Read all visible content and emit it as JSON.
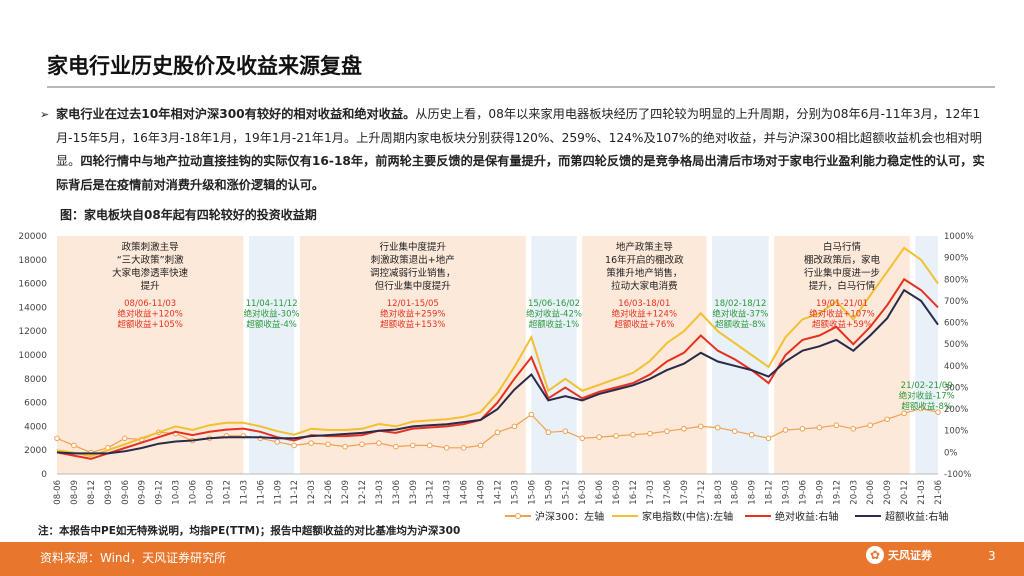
{
  "page": {
    "title": "家电行业历史股价及收益来源复盘",
    "bullet_arrow": "➢",
    "bullet_bold1": "家电行业在过去10年相对沪深300有较好的相对收益和绝对收益。",
    "bullet_text1": "从历史上看，08年以来家用电器板块经历了四轮较为明显的上升周期，分别为08年6月-11年3月，12年1月-15年5月，16年3月-18年1月，19年1月-21年1月。上升周期内家电板块分别获得120%、259%、124%及107%的绝对收益，并与沪深300相比超额收益机会也相对明显。",
    "bullet_bold2": "四轮行情中与地产拉动直接挂钩的实际仅有16-18年，前两轮主要反馈的是保有量提升，而第四轮反馈的是竞争格局出清后市场对于家电行业盈利能力稳定性的认可，实际背后是在疫情前对消费升级和涨价逻辑的认可。",
    "figure_title": "图：家电板块自08年起有四轮较好的投资收益期",
    "note": "注：本报告中PE如无特殊说明，均指PE(TTM)；报告中超额收益的对比基准均为沪深300",
    "source": "资料来源：Wind，天风证券研究所",
    "logo_text": "天风证券",
    "page_number": "3"
  },
  "chart_data": {
    "type": "line",
    "x": [
      "08-06",
      "08-09",
      "08-12",
      "09-03",
      "09-06",
      "09-09",
      "09-12",
      "10-03",
      "10-06",
      "10-09",
      "10-12",
      "11-03",
      "11-06",
      "11-09",
      "11-12",
      "12-03",
      "12-06",
      "12-09",
      "12-12",
      "13-03",
      "13-06",
      "13-09",
      "13-12",
      "14-03",
      "14-06",
      "14-09",
      "14-12",
      "15-03",
      "15-06",
      "15-09",
      "15-12",
      "16-03",
      "16-06",
      "16-09",
      "16-12",
      "17-03",
      "17-06",
      "17-09",
      "17-12",
      "18-03",
      "18-06",
      "18-09",
      "18-12",
      "19-03",
      "19-06",
      "19-09",
      "19-12",
      "20-03",
      "20-06",
      "20-09",
      "20-12",
      "21-03",
      "21-06"
    ],
    "left_axis": {
      "min": 0,
      "max": 20000,
      "ticks": [
        "0",
        "2000",
        "4000",
        "6000",
        "8000",
        "10000",
        "12000",
        "14000",
        "16000",
        "18000",
        "20000"
      ]
    },
    "right_axis": {
      "min": -100,
      "max": 1000,
      "ticks": [
        "-100%",
        "0%",
        "100%",
        "200%",
        "300%",
        "400%",
        "500%",
        "600%",
        "700%",
        "800%",
        "900%",
        "1000%"
      ]
    },
    "series": [
      {
        "name": "沪深300：左轴",
        "axis": "left",
        "color": "#f0a050",
        "marker": "circle",
        "values": [
          3000,
          2400,
          1800,
          2200,
          3000,
          2900,
          3500,
          3400,
          2800,
          3000,
          3200,
          3200,
          3000,
          2700,
          2400,
          2600,
          2500,
          2300,
          2500,
          2600,
          2300,
          2400,
          2400,
          2200,
          2200,
          2400,
          3500,
          4000,
          5000,
          3500,
          3600,
          3000,
          3100,
          3200,
          3300,
          3400,
          3600,
          3800,
          4000,
          3900,
          3600,
          3300,
          3000,
          3700,
          3800,
          3900,
          4100,
          3800,
          4100,
          4600,
          5100,
          5500,
          5200
        ]
      },
      {
        "name": "家电指数(中信):左轴",
        "axis": "left",
        "color": "#f2c030",
        "values": [
          2000,
          1800,
          1500,
          2000,
          2500,
          3000,
          3500,
          4000,
          3700,
          4100,
          4300,
          4300,
          4000,
          3600,
          3300,
          3800,
          3700,
          3700,
          3800,
          4200,
          4000,
          4400,
          4500,
          4600,
          4800,
          5200,
          6800,
          9000,
          11500,
          7000,
          8000,
          7000,
          7500,
          8000,
          8500,
          9500,
          11000,
          12000,
          13500,
          12000,
          11000,
          10000,
          9000,
          11500,
          13000,
          13500,
          14500,
          13000,
          15000,
          17000,
          19000,
          18000,
          16000
        ]
      },
      {
        "name": "绝对收益:右轴",
        "axis": "right",
        "color": "#e83020",
        "values": [
          0,
          -15,
          -30,
          -5,
          20,
          45,
          70,
          95,
          80,
          95,
          105,
          110,
          95,
          70,
          55,
          80,
          75,
          75,
          80,
          100,
          90,
          110,
          115,
          120,
          130,
          150,
          230,
          340,
          440,
          250,
          300,
          250,
          280,
          300,
          320,
          360,
          420,
          460,
          540,
          470,
          430,
          380,
          320,
          450,
          520,
          540,
          580,
          500,
          580,
          680,
          800,
          750,
          670
        ]
      },
      {
        "name": "超额收益:右轴",
        "axis": "right",
        "color": "#2a2a4a",
        "values": [
          0,
          -5,
          -5,
          -5,
          5,
          20,
          40,
          50,
          55,
          65,
          70,
          70,
          70,
          65,
          65,
          75,
          80,
          85,
          90,
          100,
          105,
          120,
          125,
          130,
          140,
          150,
          200,
          290,
          360,
          240,
          260,
          240,
          270,
          290,
          310,
          340,
          380,
          410,
          460,
          420,
          400,
          380,
          350,
          420,
          470,
          490,
          520,
          470,
          540,
          620,
          750,
          700,
          590
        ]
      }
    ],
    "periods": [
      {
        "from": "08-06",
        "to": "11-03",
        "color": "#fce9da",
        "text": [
          "政策刺激主导",
          "“三大政策”刺激",
          "大家电渗透率快速",
          "提升"
        ],
        "label": "08/06-11/03",
        "abs": "绝对收益+120%",
        "exc": "超额收益+105%",
        "lc": "#e83020"
      },
      {
        "from": "11-04",
        "to": "11-12",
        "color": "#e8f0f8",
        "label": "11/04-11/12",
        "abs": "绝对收益-30%",
        "exc": "超额收益-4%",
        "lc": "#2a9a3a"
      },
      {
        "from": "12-01",
        "to": "15-05",
        "color": "#fce9da",
        "text": [
          "行业集中度提升",
          "刺激政策退出+地产",
          "调控减弱行业销售，",
          "但行业集中度提升"
        ],
        "label": "12/01-15/05",
        "abs": "绝对收益+259%",
        "exc": "超额收益+153%",
        "lc": "#e83020"
      },
      {
        "from": "15-06",
        "to": "16-02",
        "color": "#e8f0f8",
        "label": "15/06-16/02",
        "abs": "绝对收益-42%",
        "exc": "超额收益-1%",
        "lc": "#2a9a3a"
      },
      {
        "from": "16-03",
        "to": "18-01",
        "color": "#fce9da",
        "text": [
          "地产政策主导",
          "16年开启的棚改政",
          "策推升地产销售，",
          "拉动大家电消费"
        ],
        "label": "16/03-18/01",
        "abs": "绝对收益+124%",
        "exc": "超额收益+76%",
        "lc": "#e83020"
      },
      {
        "from": "18-02",
        "to": "18-12",
        "color": "#e8f0f8",
        "label": "18/02-18/12",
        "abs": "绝对收益-37%",
        "exc": "超额收益-8%",
        "lc": "#2a9a3a"
      },
      {
        "from": "19-01",
        "to": "21-01",
        "color": "#fce9da",
        "text": [
          "白马行情",
          "棚改政策后，家电",
          "行业集中度进一步",
          "提升，白马行情"
        ],
        "label": "19/01-21/01",
        "abs": "绝对收益+107%",
        "exc": "超额收益+59%",
        "lc": "#e83020"
      },
      {
        "from": "21-02",
        "to": "21-09",
        "color": "#e8f0f8",
        "label": "21/02-21/09",
        "abs": "绝对收益-17%",
        "exc": "超额收益-8%",
        "lc": "#2a9a3a"
      }
    ]
  }
}
